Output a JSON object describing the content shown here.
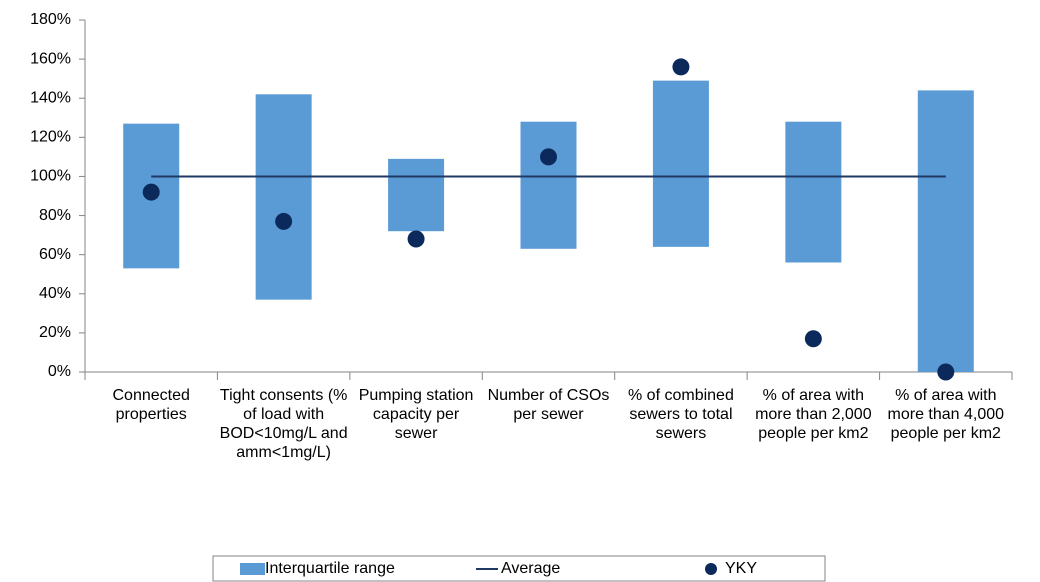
{
  "chart_data": {
    "type": "combo",
    "categories": [
      "Connected properties",
      "Tight consents (% of load with BOD<10mg/L and amm<1mg/L)",
      "Pumping station capacity per sewer",
      "Number of CSOs per sewer",
      "% of combined sewers to total sewers",
      "% of area with more than 2,000 people per km2",
      "% of area with more than 4,000 people per km2"
    ],
    "series": [
      {
        "name": "Interquartile range",
        "type": "range",
        "color": "#5b9bd5",
        "low": [
          53,
          37,
          72,
          63,
          64,
          56,
          0
        ],
        "high": [
          127,
          142,
          109,
          128,
          149,
          128,
          144
        ]
      },
      {
        "name": "Average",
        "type": "line",
        "color": "#1f3864",
        "values": [
          100,
          100,
          100,
          100,
          100,
          100,
          100
        ]
      },
      {
        "name": "YKY",
        "type": "scatter",
        "color": "#0b2a5b",
        "values": [
          92,
          77,
          68,
          110,
          156,
          17,
          0
        ]
      }
    ],
    "ylim": [
      0,
      180
    ],
    "yticks": [
      {
        "value": 0,
        "label": "0%"
      },
      {
        "value": 20,
        "label": "20%"
      },
      {
        "value": 40,
        "label": "40%"
      },
      {
        "value": 60,
        "label": "60%"
      },
      {
        "value": 80,
        "label": "80%"
      },
      {
        "value": 100,
        "label": "100%"
      },
      {
        "value": 120,
        "label": "120%"
      },
      {
        "value": 140,
        "label": "140%"
      },
      {
        "value": 160,
        "label": "160%"
      },
      {
        "value": 180,
        "label": "180%"
      }
    ],
    "grid": false,
    "legend": "bottom"
  }
}
